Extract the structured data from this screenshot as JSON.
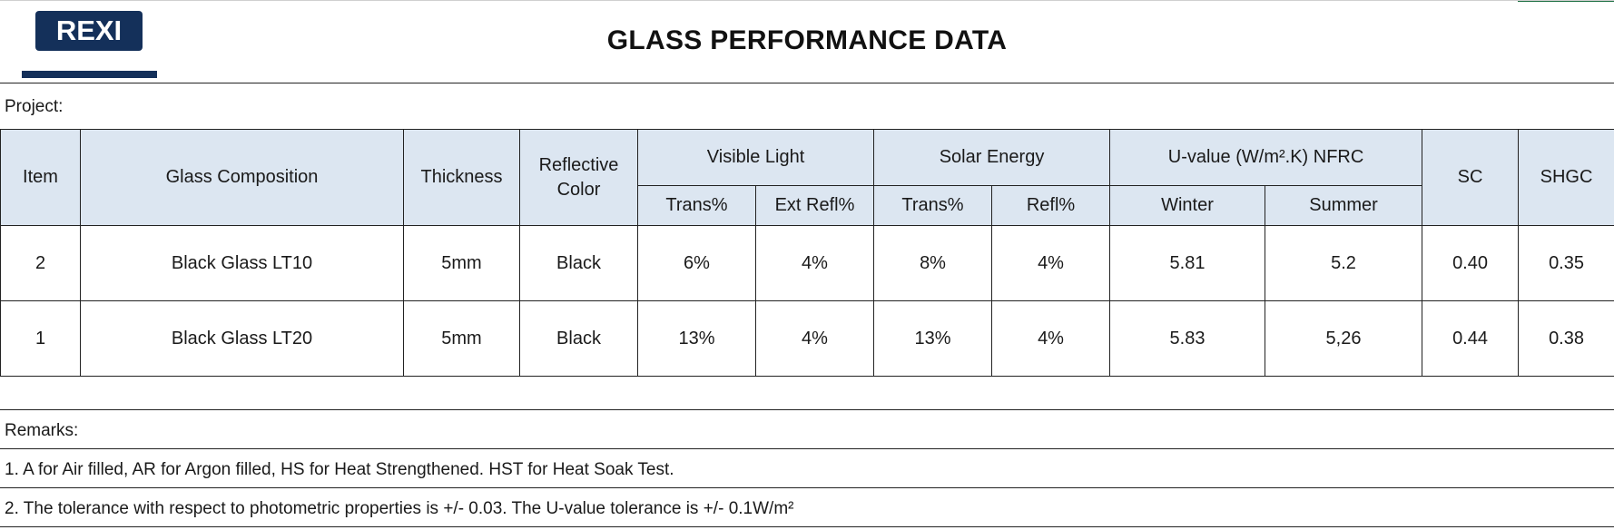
{
  "header": {
    "logo_text": "REXI",
    "title": "GLASS PERFORMANCE DATA",
    "brand_color": "#14305a"
  },
  "project": {
    "label": "Project:"
  },
  "table": {
    "header_fill": "#dce6f1",
    "headers": {
      "item": "Item",
      "composition": "Glass Composition",
      "thickness": "Thickness",
      "reflective_color": "Reflective Color",
      "visible_light": "Visible Light",
      "solar_energy": "Solar Energy",
      "u_value": "U-value (W/m².K) NFRC",
      "sc": "SC",
      "shgc": "SHGC",
      "vl_trans": "Trans%",
      "vl_ext_refl": "Ext Refl%",
      "se_trans": "Trans%",
      "se_refl": "Refl%",
      "winter": "Winter",
      "summer": "Summer"
    },
    "rows": [
      {
        "item": "2",
        "composition": "Black Glass LT10",
        "thickness": "5mm",
        "color": "Black",
        "vl_trans": "6%",
        "vl_ext_refl": "4%",
        "se_trans": "8%",
        "se_refl": "4%",
        "winter": "5.81",
        "summer": "5.2",
        "sc": "0.40",
        "shgc": "0.35"
      },
      {
        "item": "1",
        "composition": "Black Glass LT20",
        "thickness": "5mm",
        "color": "Black",
        "vl_trans": "13%",
        "vl_ext_refl": "4%",
        "se_trans": "13%",
        "se_refl": "4%",
        "winter": "5.83",
        "summer": "5,26",
        "sc": "0.44",
        "shgc": "0.38"
      }
    ]
  },
  "remarks": {
    "label": "Remarks:",
    "items": [
      "1. A for Air filled, AR for Argon filled, HS for Heat Strengthened. HST for Heat Soak Test.",
      "2. The tolerance with respect to photometric properties is +/- 0.03. The U-value tolerance is +/- 0.1W/m²"
    ]
  }
}
